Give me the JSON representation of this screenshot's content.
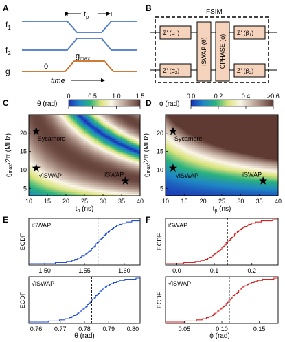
{
  "panels": {
    "A": {
      "label": "A",
      "curve_labels": [
        "f",
        "1",
        "f",
        "2",
        "g"
      ],
      "tp_label": [
        "t",
        "p"
      ],
      "gmax_label": [
        "g",
        "max"
      ],
      "zero_label": "0",
      "time_label": "time"
    },
    "B": {
      "label": "B",
      "title": "FSIM",
      "gates_left": [
        {
          "text": "Z′ (α",
          "sub": "1",
          "end": ")"
        },
        {
          "text": "Z′ (α",
          "sub": "2",
          "end": ")"
        }
      ],
      "gates_right": [
        {
          "text": "Z′ (β",
          "sub": "1",
          "end": ")"
        },
        {
          "text": "Z′ (β",
          "sub": "2",
          "end": ")"
        }
      ],
      "iswap_gate": "iSWAP (θ)",
      "cphase_gate": "CPHASE (ϕ)"
    },
    "C": {
      "label": "C",
      "colorbar_title": "θ (rad)",
      "colorbar_ticks": [
        "0",
        "0.5",
        "1.0",
        "1.5"
      ],
      "xlabel": "t_p (ns)",
      "ylabel": "g_max/2π (MHz)",
      "xticks": [
        "10",
        "15",
        "20",
        "25",
        "30",
        "35",
        "40"
      ],
      "yticks": [
        "5",
        "10",
        "15",
        "20"
      ],
      "markers": [
        {
          "name": "Sycamore",
          "tp": 12,
          "g": 20.5
        },
        {
          "name": "√iSWAP",
          "tp": 12,
          "g": 10.5
        },
        {
          "name": "iSWAP",
          "tp": 36,
          "g": 7.0
        }
      ]
    },
    "D": {
      "label": "D",
      "colorbar_title": "ϕ (rad)",
      "colorbar_ticks": [
        "0.0",
        "0.2",
        "0.4",
        "≥0.6"
      ],
      "xlabel": "t_p (ns)",
      "ylabel": "g_max/2π (MHz)",
      "xticks": [
        "10",
        "15",
        "20",
        "25",
        "30",
        "35",
        "40"
      ],
      "yticks": [
        "5",
        "10",
        "15",
        "20"
      ],
      "markers": [
        {
          "name": "Sycamore",
          "tp": 12,
          "g": 20.5
        },
        {
          "name": "√iSWAP",
          "tp": 12,
          "g": 10.5
        },
        {
          "name": "iSWAP",
          "tp": 36,
          "g": 7.0
        }
      ]
    },
    "E": {
      "label": "E",
      "xlabel": "θ (rad)",
      "ylabel": "ECDF",
      "top": {
        "name": "iSWAP",
        "xticks": [
          "1.50",
          "1.55",
          "1.60"
        ],
        "xlim": [
          1.48,
          1.62
        ],
        "median": 1.567
      },
      "bottom": {
        "name": "√iSWAP",
        "xticks": [
          "0.76",
          "0.77",
          "0.78",
          "0.79",
          "0.80"
        ],
        "xlim": [
          0.757,
          0.803
        ],
        "median": 0.783
      }
    },
    "F": {
      "label": "F",
      "xlabel": "ϕ (rad)",
      "ylabel": "ECDF",
      "top": {
        "name": "iSWAP",
        "xticks": [
          "0.0",
          "0.1",
          "0.2"
        ],
        "xlim": [
          -0.03,
          0.27
        ],
        "median": 0.135
      },
      "bottom": {
        "name": "√iSWAP",
        "xticks": [
          "0.05",
          "0.10",
          "0.15"
        ],
        "xlim": [
          0.025,
          0.175
        ],
        "median": 0.11
      }
    }
  },
  "colors": {
    "f_lines": "#4a77c9",
    "g_line": "#c8691c",
    "ecdf_E": "#1f4fd6",
    "ecdf_F": "#d42020",
    "gate_fill": "#f6d3bd",
    "median_line": "#000000"
  },
  "chart_data": [
    {
      "type": "heatmap",
      "panel": "C",
      "quantity": "θ (rad)",
      "x_range": [
        10,
        40
      ],
      "y_range": [
        3,
        25
      ],
      "z_range": [
        0,
        1.5
      ],
      "xlabel": "t_p (ns)",
      "ylabel": "g_max/2π (MHz)",
      "colormap": "cyclic blue-green-yellow-white-brown"
    },
    {
      "type": "heatmap",
      "panel": "D",
      "quantity": "ϕ (rad)",
      "x_range": [
        10,
        40
      ],
      "y_range": [
        3,
        25
      ],
      "z_range": [
        0,
        0.6
      ],
      "xlabel": "t_p (ns)",
      "ylabel": "g_max/2π (MHz)",
      "colormap": "blue-green-yellow-white-brown"
    },
    {
      "type": "line",
      "panel": "E-top",
      "series": [
        {
          "name": "iSWAP",
          "median": 1.567,
          "x_range": [
            1.48,
            1.62
          ]
        }
      ],
      "ylabel": "ECDF",
      "ylim": [
        0,
        1
      ]
    },
    {
      "type": "line",
      "panel": "E-bottom",
      "series": [
        {
          "name": "√iSWAP",
          "median": 0.783,
          "x_range": [
            0.757,
            0.803
          ]
        }
      ],
      "ylabel": "ECDF",
      "xlabel": "θ (rad)",
      "ylim": [
        0,
        1
      ]
    },
    {
      "type": "line",
      "panel": "F-top",
      "series": [
        {
          "name": "iSWAP",
          "median": 0.135,
          "x_range": [
            -0.03,
            0.27
          ]
        }
      ],
      "ylabel": "ECDF",
      "ylim": [
        0,
        1
      ]
    },
    {
      "type": "line",
      "panel": "F-bottom",
      "series": [
        {
          "name": "√iSWAP",
          "median": 0.11,
          "x_range": [
            0.025,
            0.175
          ]
        }
      ],
      "ylabel": "ECDF",
      "xlabel": "ϕ (rad)",
      "ylim": [
        0,
        1
      ]
    }
  ]
}
